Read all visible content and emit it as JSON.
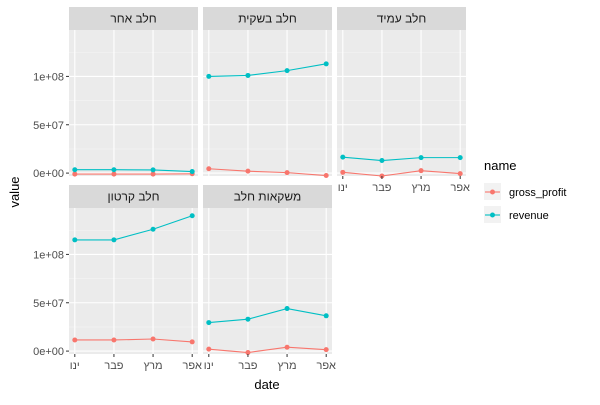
{
  "chart_data": {
    "type": "line",
    "facet_titles": [
      "חלב אחר",
      "חלב בשקית",
      "חלב עמיד",
      "חלב קרטון",
      "משקאות חלב"
    ],
    "categories": [
      "ינו",
      "פבר",
      "מרץ",
      "אפר"
    ],
    "xlabel": "date",
    "ylabel": "value",
    "y_tick_values": [
      0,
      50000000,
      100000000
    ],
    "y_tick_labels": [
      "0e+00",
      "5e+07",
      "1e+08"
    ],
    "ylim": [
      -3000000,
      148000000
    ],
    "grid": true,
    "legend": {
      "title": "name",
      "position": "right",
      "entries": [
        {
          "label": "gross_profit",
          "color": "#F8766D"
        },
        {
          "label": "revenue",
          "color": "#00BFC4"
        }
      ]
    },
    "panels": [
      {
        "title": "חלב אחר",
        "series": [
          {
            "name": "gross_profit",
            "values": [
              -1000000,
              -1000000,
              -1000000,
              -700000
            ]
          },
          {
            "name": "revenue",
            "values": [
              3500000,
              3500000,
              3300000,
              1600000
            ]
          }
        ]
      },
      {
        "title": "חלב בשקית",
        "series": [
          {
            "name": "gross_profit",
            "values": [
              4500000,
              2000000,
              500000,
              -2500000
            ]
          },
          {
            "name": "revenue",
            "values": [
              100000000,
              101000000,
              106000000,
              113000000
            ]
          }
        ]
      },
      {
        "title": "חלב עמיד",
        "series": [
          {
            "name": "gross_profit",
            "values": [
              800000,
              -3000000,
              2500000,
              -500000
            ]
          },
          {
            "name": "revenue",
            "values": [
              16500000,
              13000000,
              16000000,
              16000000
            ]
          }
        ]
      },
      {
        "title": "חלב קרטון",
        "series": [
          {
            "name": "gross_profit",
            "values": [
              11500000,
              11500000,
              12500000,
              9500000
            ]
          },
          {
            "name": "revenue",
            "values": [
              115000000,
              115000000,
              126000000,
              140000000
            ]
          }
        ]
      },
      {
        "title": "משקאות חלב",
        "series": [
          {
            "name": "gross_profit",
            "values": [
              2000000,
              -1500000,
              4000000,
              1500000
            ]
          },
          {
            "name": "revenue",
            "values": [
              29500000,
              33000000,
              44000000,
              36500000
            ]
          }
        ]
      }
    ]
  }
}
